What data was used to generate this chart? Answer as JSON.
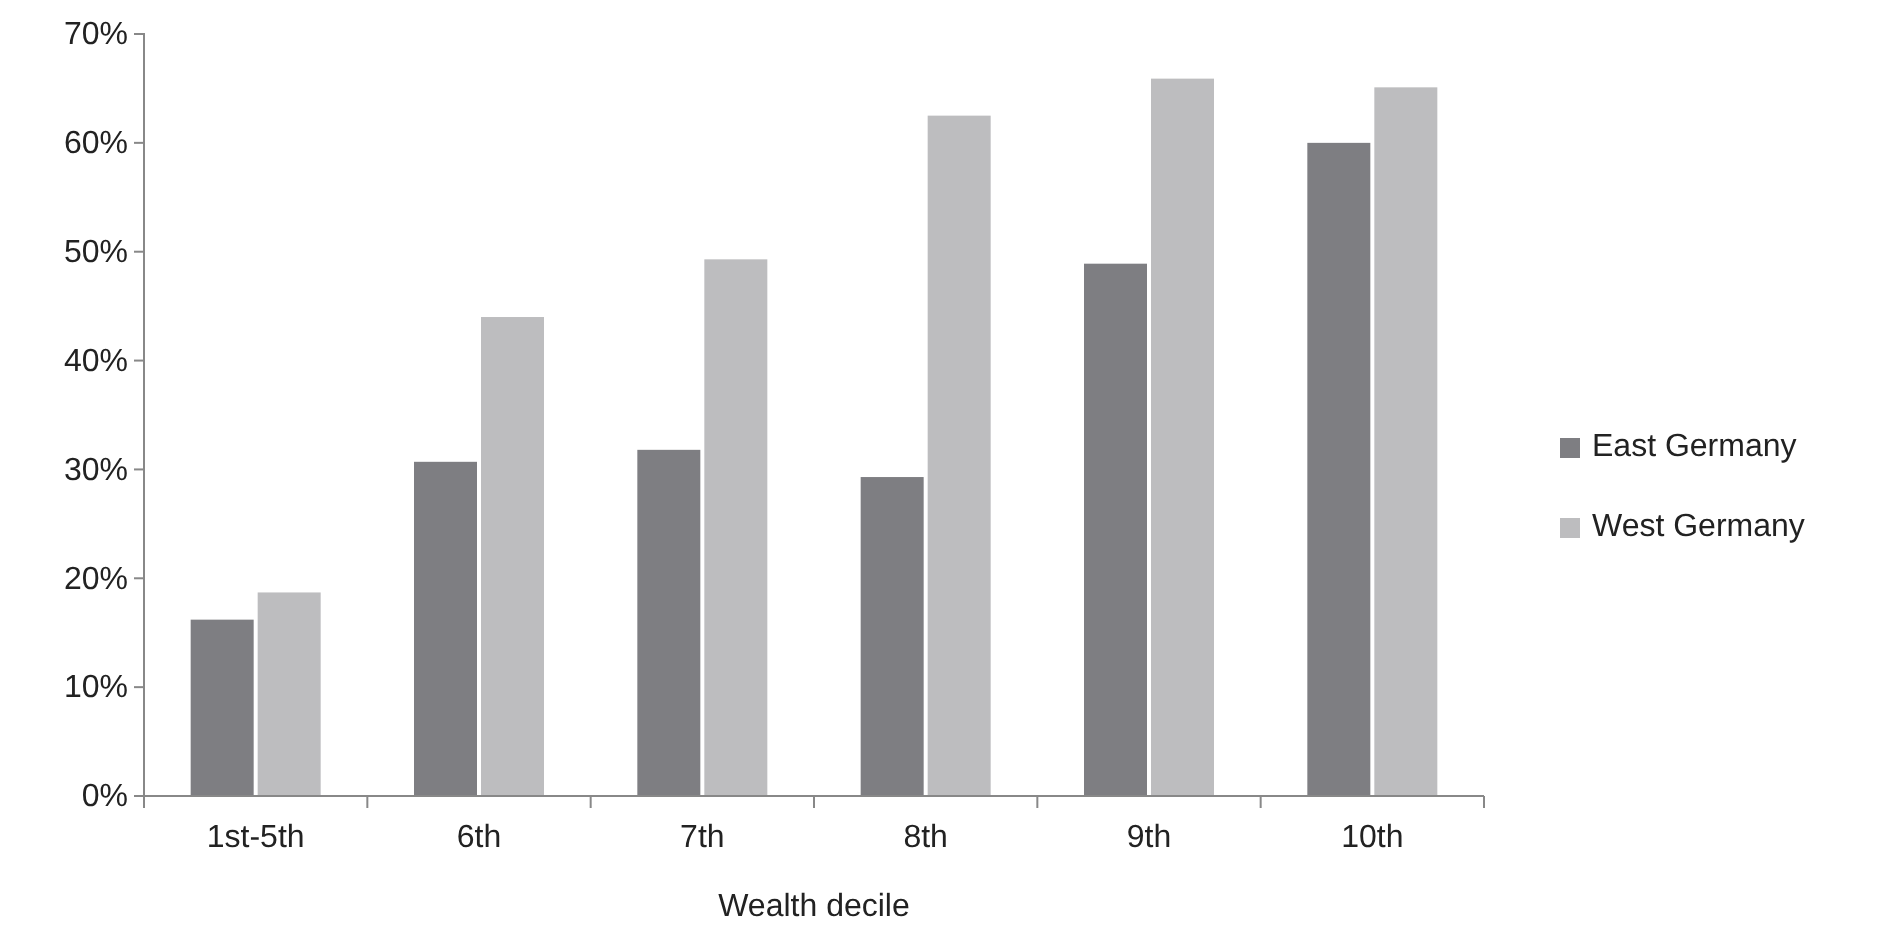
{
  "chart_data": {
    "type": "bar",
    "xlabel": "Wealth decile",
    "categories": [
      "1st-5th",
      "6th",
      "7th",
      "8th",
      "9th",
      "10th"
    ],
    "series": [
      {
        "name": "East Germany",
        "color": "#7e7e82",
        "values": [
          16.2,
          30.7,
          31.8,
          29.3,
          48.9,
          60
        ]
      },
      {
        "name": "West Germany",
        "color": "#bdbdbf",
        "values": [
          18.7,
          44,
          49.3,
          62.5,
          65.9,
          65.1
        ]
      }
    ],
    "ylim": [
      0,
      70
    ],
    "yticks": [
      {
        "value": 0,
        "label": "0%"
      },
      {
        "value": 10,
        "label": "10%"
      },
      {
        "value": 20,
        "label": "20%"
      },
      {
        "value": 30,
        "label": "30%"
      },
      {
        "value": 40,
        "label": "40%"
      },
      {
        "value": 50,
        "label": "50%"
      },
      {
        "value": 60,
        "label": "60%"
      },
      {
        "value": 70,
        "label": "70%"
      }
    ],
    "grid": false,
    "legend": "right"
  }
}
